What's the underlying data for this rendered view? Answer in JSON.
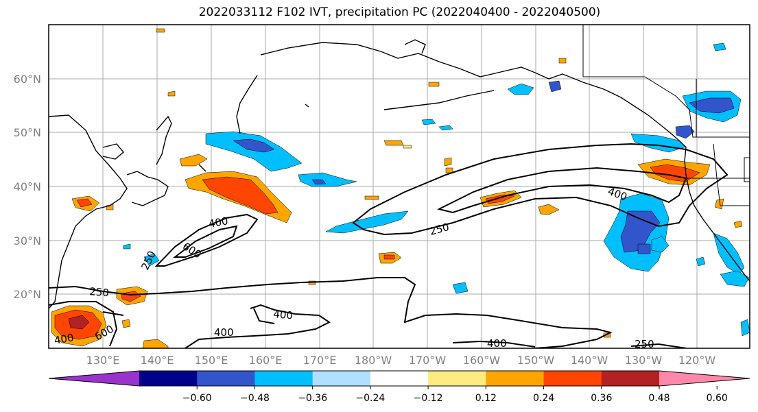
{
  "title": "2022033112 F102 IVT, precipitation PC (2022040400 - 2022040500)",
  "map": {
    "lat_labels": [
      "60°N",
      "50°N",
      "40°N",
      "30°N",
      "20°N"
    ],
    "lon_labels": [
      "130°E",
      "140°E",
      "150°E",
      "160°E",
      "170°E",
      "180°W",
      "170°W",
      "160°W",
      "150°W",
      "140°W",
      "130°W",
      "120°W"
    ],
    "contour_labels": [
      "400",
      "600",
      "250",
      "250",
      "400",
      "250",
      "400",
      "400",
      "600",
      "400",
      "400",
      "250"
    ]
  },
  "colorbar": {
    "colors": [
      "#9933cc",
      "#00008b",
      "#3355cc",
      "#00bfff",
      "#b0e0ff",
      "#ffffff",
      "#ffeb80",
      "#ffa500",
      "#ff4500",
      "#b22222",
      "#ff88aa"
    ],
    "ticks": [
      "−0.60",
      "−0.48",
      "−0.36",
      "−0.24",
      "−0.12",
      "0.12",
      "0.24",
      "0.36",
      "0.48",
      "0.60"
    ]
  }
}
